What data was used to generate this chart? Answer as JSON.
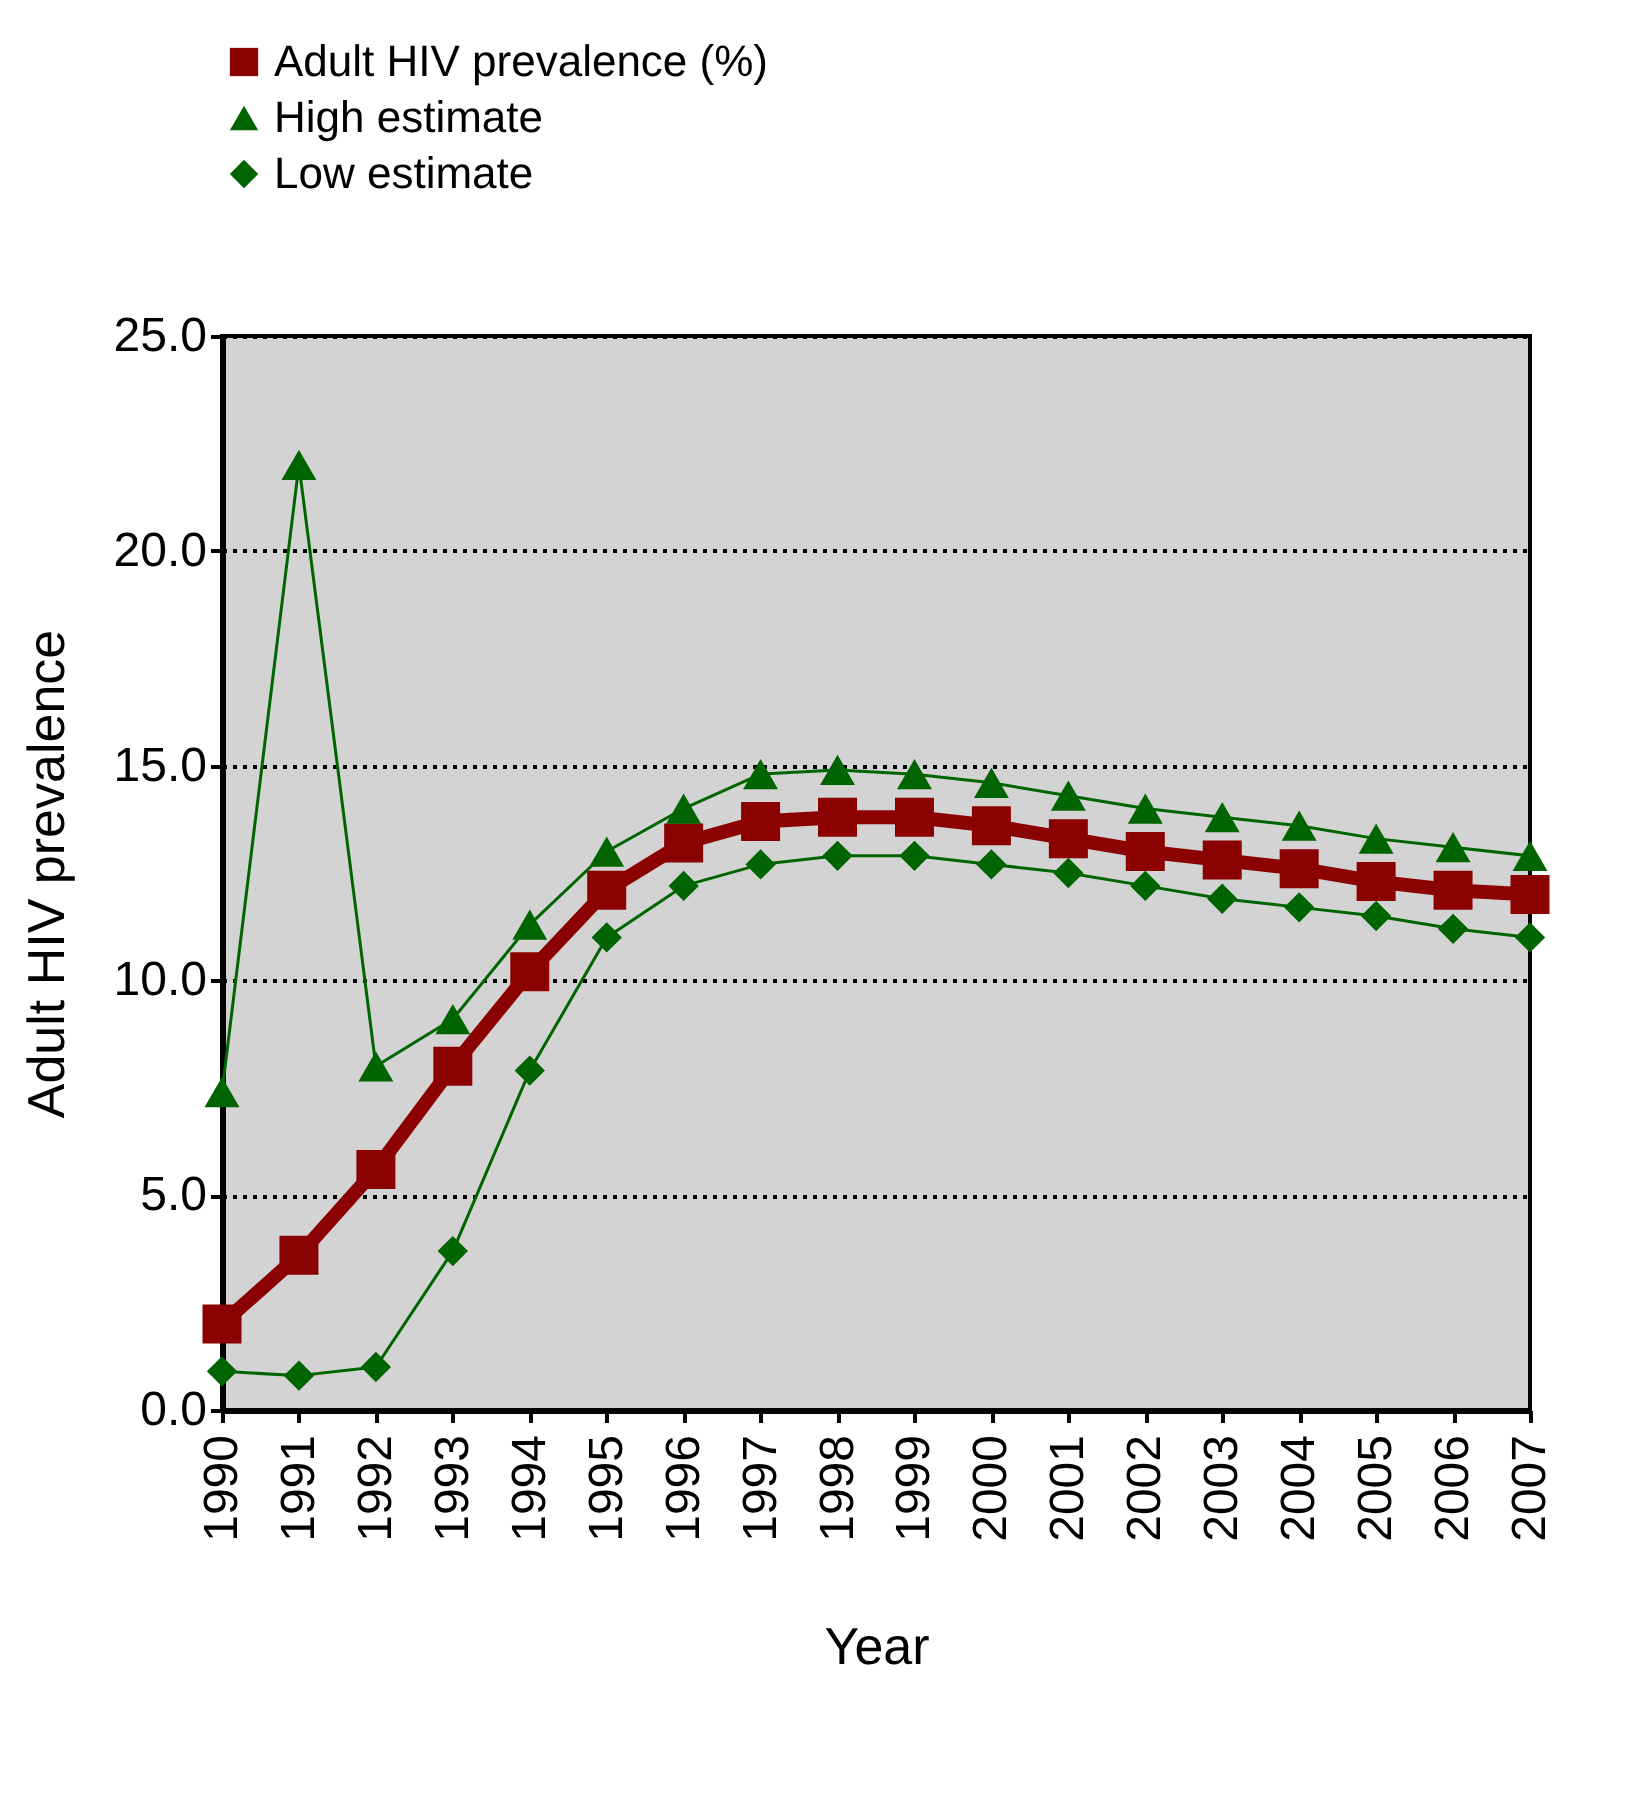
{
  "chart_data": {
    "type": "line",
    "xlabel": "Year",
    "ylabel": "Adult HIV prevalence",
    "categories": [
      "1990",
      "1991",
      "1992",
      "1993",
      "1994",
      "1995",
      "1996",
      "1997",
      "1998",
      "1999",
      "2000",
      "2001",
      "2002",
      "2003",
      "2004",
      "2005",
      "2006",
      "2007"
    ],
    "series": [
      {
        "name": "Adult HIV prevalence (%)",
        "color": "#8b0000",
        "marker": "square",
        "values": [
          2.0,
          3.6,
          5.6,
          8.0,
          10.2,
          12.1,
          13.2,
          13.7,
          13.8,
          13.8,
          13.6,
          13.3,
          13.0,
          12.8,
          12.6,
          12.3,
          12.1,
          12.0
        ]
      },
      {
        "name": "High estimate",
        "color": "#006400",
        "marker": "triangle",
        "values": [
          7.4,
          22.0,
          8.0,
          9.1,
          11.3,
          13.0,
          14.0,
          14.8,
          14.9,
          14.8,
          14.6,
          14.3,
          14.0,
          13.8,
          13.6,
          13.3,
          13.1,
          12.9
        ]
      },
      {
        "name": "Low estimate",
        "color": "#006400",
        "marker": "diamond",
        "values": [
          0.9,
          0.8,
          1.0,
          3.7,
          7.9,
          11.0,
          12.2,
          12.7,
          12.9,
          12.9,
          12.7,
          12.5,
          12.2,
          11.9,
          11.7,
          11.5,
          11.2,
          11.0
        ]
      }
    ],
    "ylim": [
      0,
      25
    ],
    "yticks": [
      {
        "value": 0,
        "label": "0.0"
      },
      {
        "value": 5,
        "label": "5.0"
      },
      {
        "value": 10,
        "label": "10.0"
      },
      {
        "value": 15,
        "label": "15.0"
      },
      {
        "value": 20,
        "label": "20.0"
      },
      {
        "value": 25,
        "label": "25.0"
      }
    ],
    "grid": "y",
    "legend": "top"
  }
}
